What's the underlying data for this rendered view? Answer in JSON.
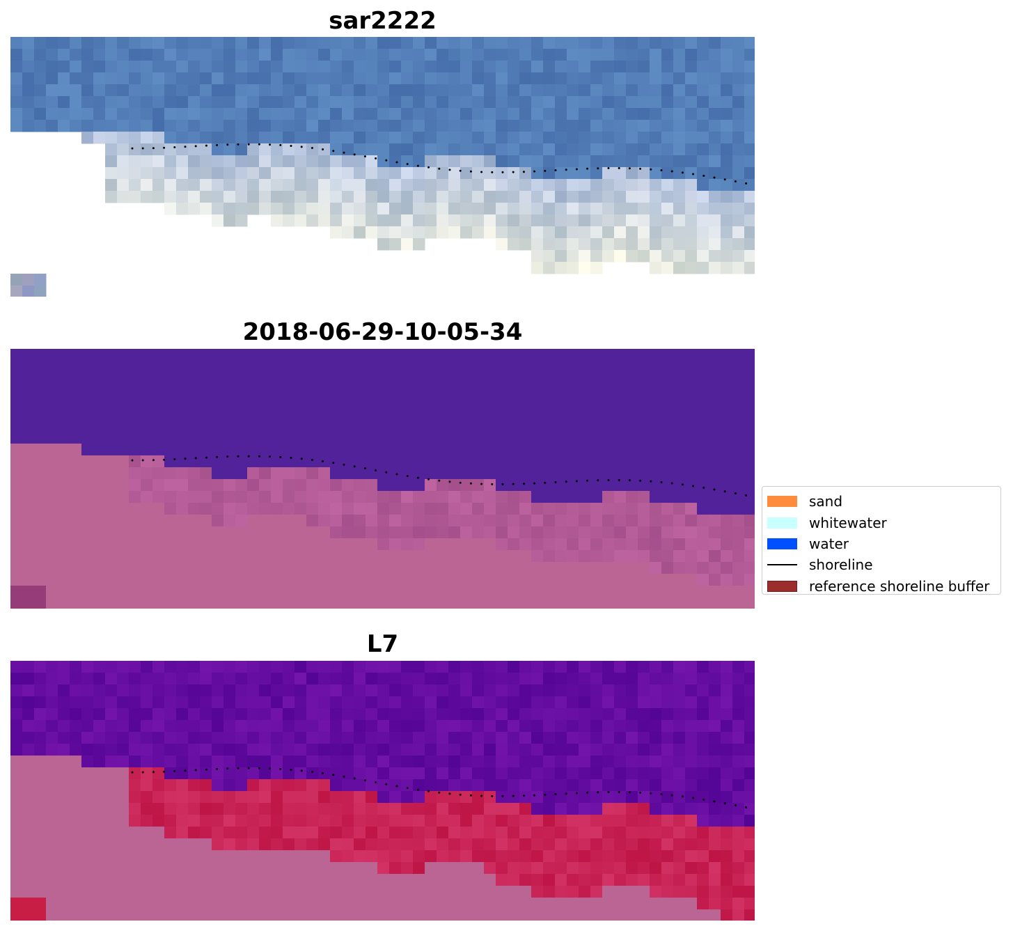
{
  "panels": [
    {
      "title": "sar2222",
      "style": "rgb"
    },
    {
      "title": "2018-06-29-10-05-34",
      "style": "class"
    },
    {
      "title": "L7",
      "style": "index"
    }
  ],
  "legend": {
    "items": [
      {
        "label": "sand",
        "color": "#ff8c3c",
        "kind": "patch"
      },
      {
        "label": "whitewater",
        "color": "#c8ffff",
        "kind": "patch"
      },
      {
        "label": "water",
        "color": "#0050ff",
        "kind": "patch"
      },
      {
        "label": "shoreline",
        "color": "#000000",
        "kind": "line"
      },
      {
        "label": "reference shoreline buffer",
        "color": "#9b2d2d",
        "kind": "patch"
      }
    ]
  },
  "colors": {
    "water_rgb": "#4a78b4",
    "water_class": "#52229a",
    "land_class": "#ba6593",
    "water_index": "#5e0c9a",
    "land_index": "#ba6593",
    "buffer_index": "#c01f4a"
  }
}
